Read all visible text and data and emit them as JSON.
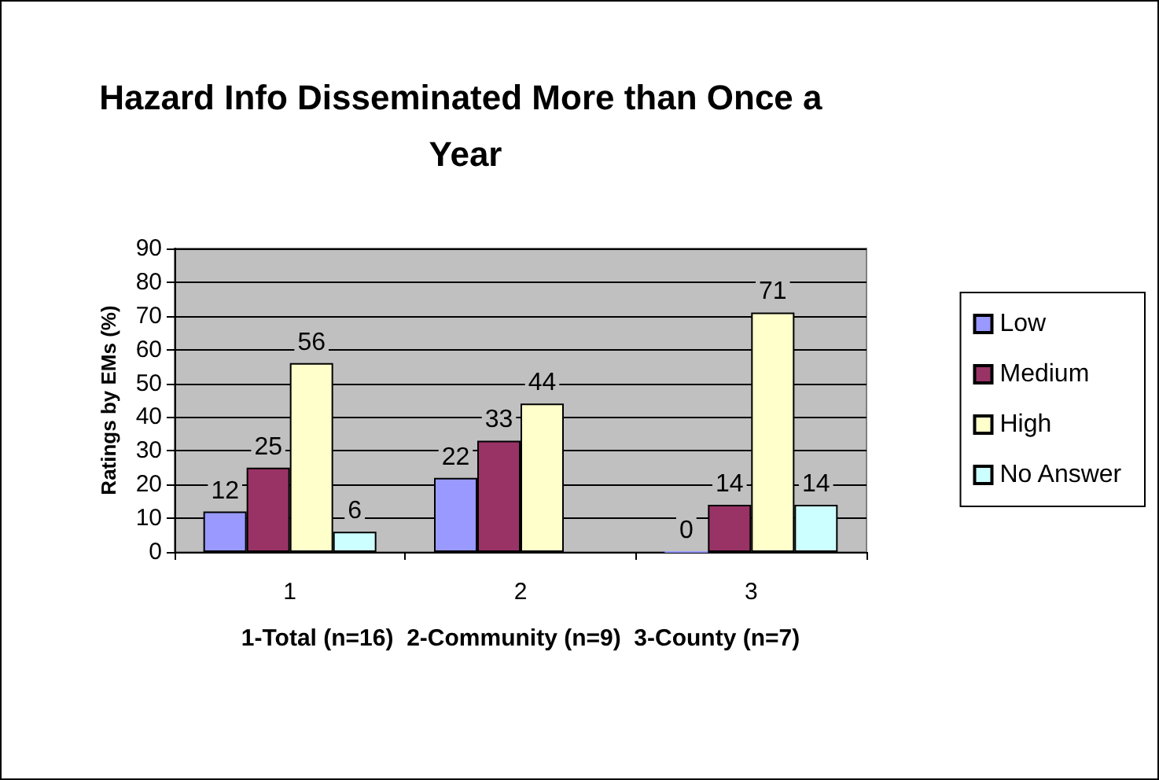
{
  "chart_data": {
    "type": "bar",
    "title": "Hazard Info Disseminated More than Once a Year",
    "ylabel": "Ratings by EMs (%)",
    "xlabel": "1-Total (n=16)  2-Community (n=9)  3-County (n=7)",
    "categories": [
      "1",
      "2",
      "3"
    ],
    "series": [
      {
        "name": "Low",
        "color": "#9999ff",
        "values": [
          12,
          22,
          0
        ]
      },
      {
        "name": "Medium",
        "color": "#993366",
        "values": [
          25,
          33,
          14
        ]
      },
      {
        "name": "High",
        "color": "#ffffcc",
        "values": [
          56,
          44,
          71
        ]
      },
      {
        "name": "No Answer",
        "color": "#ccffff",
        "values": [
          6,
          null,
          14
        ]
      }
    ],
    "ylim": [
      0,
      90
    ],
    "yticks": [
      0,
      10,
      20,
      30,
      40,
      50,
      60,
      70,
      80,
      90
    ],
    "grid": "y",
    "legend": "right",
    "data_labels": true
  }
}
